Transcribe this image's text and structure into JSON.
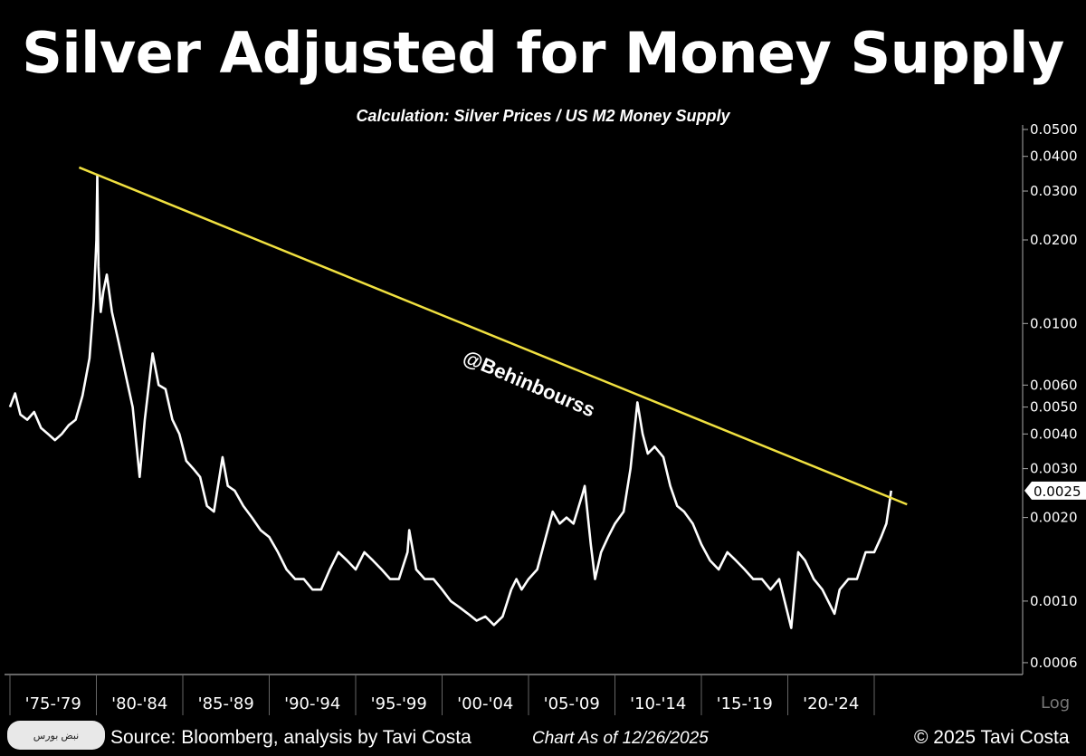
{
  "chart_data": {
    "type": "line",
    "title": "Silver Adjusted for Money Supply",
    "subtitle": "Calculation: Silver Prices / US M2 Money Supply",
    "y_scale": "log",
    "ylim": [
      0.0006,
      0.05
    ],
    "xlim": [
      1975,
      2027
    ],
    "grid": false,
    "y_ticks": [
      "0.0500",
      "0.0400",
      "0.0300",
      "0.0200",
      "0.0100",
      "0.0060",
      "0.0050",
      "0.0040",
      "0.0030",
      "0.0020",
      "0.0010",
      "0.0006"
    ],
    "y_axis_label": "Log",
    "last_value_label": "0.0025",
    "x_tick_labels": [
      "'75-'79",
      "'80-'84",
      "'85-'89",
      "'90-'94",
      "'95-'99",
      "'00-'04",
      "'05-'09",
      "'10-'14",
      "'15-'19",
      "'20-'24"
    ],
    "series": [
      {
        "color": "#ffffff",
        "points": [
          [
            1975.0,
            0.005
          ],
          [
            1975.3,
            0.0056
          ],
          [
            1975.6,
            0.0047
          ],
          [
            1976.0,
            0.0045
          ],
          [
            1976.4,
            0.0048
          ],
          [
            1976.8,
            0.0042
          ],
          [
            1977.2,
            0.004
          ],
          [
            1977.6,
            0.0038
          ],
          [
            1978.0,
            0.004
          ],
          [
            1978.4,
            0.0043
          ],
          [
            1978.8,
            0.0045
          ],
          [
            1979.2,
            0.0055
          ],
          [
            1979.6,
            0.0075
          ],
          [
            1979.85,
            0.012
          ],
          [
            1980.0,
            0.02
          ],
          [
            1980.05,
            0.034
          ],
          [
            1980.12,
            0.016
          ],
          [
            1980.25,
            0.011
          ],
          [
            1980.4,
            0.013
          ],
          [
            1980.6,
            0.015
          ],
          [
            1980.9,
            0.011
          ],
          [
            1981.3,
            0.0085
          ],
          [
            1981.7,
            0.0065
          ],
          [
            1982.1,
            0.005
          ],
          [
            1982.5,
            0.0028
          ],
          [
            1982.8,
            0.0045
          ],
          [
            1983.1,
            0.0065
          ],
          [
            1983.25,
            0.0078
          ],
          [
            1983.6,
            0.006
          ],
          [
            1984.0,
            0.0058
          ],
          [
            1984.4,
            0.0045
          ],
          [
            1984.8,
            0.004
          ],
          [
            1985.2,
            0.0032
          ],
          [
            1985.6,
            0.003
          ],
          [
            1986.0,
            0.0028
          ],
          [
            1986.4,
            0.0022
          ],
          [
            1986.8,
            0.0021
          ],
          [
            1987.3,
            0.0033
          ],
          [
            1987.6,
            0.0026
          ],
          [
            1988.0,
            0.0025
          ],
          [
            1988.5,
            0.0022
          ],
          [
            1989.0,
            0.002
          ],
          [
            1989.5,
            0.0018
          ],
          [
            1990.0,
            0.0017
          ],
          [
            1990.5,
            0.0015
          ],
          [
            1991.0,
            0.0013
          ],
          [
            1991.5,
            0.0012
          ],
          [
            1992.0,
            0.0012
          ],
          [
            1992.5,
            0.0011
          ],
          [
            1993.0,
            0.0011
          ],
          [
            1993.5,
            0.0013
          ],
          [
            1994.0,
            0.0015
          ],
          [
            1994.5,
            0.0014
          ],
          [
            1995.0,
            0.0013
          ],
          [
            1995.5,
            0.0015
          ],
          [
            1996.0,
            0.0014
          ],
          [
            1996.5,
            0.0013
          ],
          [
            1997.0,
            0.0012
          ],
          [
            1997.5,
            0.0012
          ],
          [
            1998.0,
            0.0015
          ],
          [
            1998.1,
            0.0018
          ],
          [
            1998.5,
            0.0013
          ],
          [
            1999.0,
            0.0012
          ],
          [
            1999.5,
            0.0012
          ],
          [
            2000.0,
            0.0011
          ],
          [
            2000.5,
            0.001
          ],
          [
            2001.0,
            0.00095
          ],
          [
            2001.5,
            0.0009
          ],
          [
            2002.0,
            0.00085
          ],
          [
            2002.5,
            0.00088
          ],
          [
            2003.0,
            0.00082
          ],
          [
            2003.5,
            0.00088
          ],
          [
            2004.0,
            0.0011
          ],
          [
            2004.3,
            0.0012
          ],
          [
            2004.6,
            0.0011
          ],
          [
            2005.0,
            0.0012
          ],
          [
            2005.5,
            0.0013
          ],
          [
            2006.0,
            0.0017
          ],
          [
            2006.4,
            0.0021
          ],
          [
            2006.8,
            0.0019
          ],
          [
            2007.2,
            0.002
          ],
          [
            2007.6,
            0.0019
          ],
          [
            2008.1,
            0.0024
          ],
          [
            2008.25,
            0.0026
          ],
          [
            2008.6,
            0.0016
          ],
          [
            2008.85,
            0.0012
          ],
          [
            2009.2,
            0.0015
          ],
          [
            2009.6,
            0.0017
          ],
          [
            2010.0,
            0.0019
          ],
          [
            2010.5,
            0.0021
          ],
          [
            2010.9,
            0.003
          ],
          [
            2011.3,
            0.0052
          ],
          [
            2011.6,
            0.004
          ],
          [
            2011.9,
            0.0034
          ],
          [
            2012.3,
            0.0036
          ],
          [
            2012.8,
            0.0033
          ],
          [
            2013.2,
            0.0026
          ],
          [
            2013.6,
            0.0022
          ],
          [
            2014.0,
            0.0021
          ],
          [
            2014.5,
            0.0019
          ],
          [
            2015.0,
            0.0016
          ],
          [
            2015.5,
            0.0014
          ],
          [
            2016.0,
            0.0013
          ],
          [
            2016.5,
            0.0015
          ],
          [
            2017.0,
            0.0014
          ],
          [
            2017.5,
            0.0013
          ],
          [
            2018.0,
            0.0012
          ],
          [
            2018.5,
            0.0012
          ],
          [
            2019.0,
            0.0011
          ],
          [
            2019.5,
            0.0012
          ],
          [
            2020.2,
            0.0008
          ],
          [
            2020.6,
            0.0015
          ],
          [
            2021.0,
            0.0014
          ],
          [
            2021.5,
            0.0012
          ],
          [
            2022.0,
            0.0011
          ],
          [
            2022.7,
            0.0009
          ],
          [
            2023.0,
            0.0011
          ],
          [
            2023.5,
            0.0012
          ],
          [
            2024.0,
            0.0012
          ],
          [
            2024.5,
            0.0015
          ],
          [
            2025.0,
            0.0015
          ],
          [
            2025.4,
            0.0017
          ],
          [
            2025.7,
            0.0019
          ],
          [
            2025.9,
            0.0023
          ],
          [
            2025.98,
            0.0025
          ]
        ]
      }
    ],
    "trendline": {
      "color": "#f0e040",
      "start": [
        1979.0,
        0.0365
      ],
      "end": [
        2026.9,
        0.00223
      ]
    },
    "watermark": "@Behinbourss"
  },
  "footer": {
    "source": "Source: Bloomberg, analysis by Tavi Costa",
    "date": "Chart As of 12/26/2025",
    "copyright": "© 2025 Tavi Costa",
    "logo_text": "نبض بورس"
  }
}
